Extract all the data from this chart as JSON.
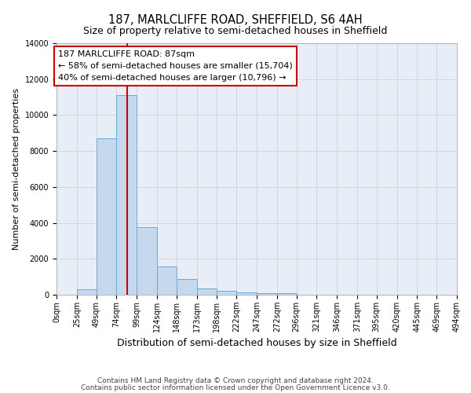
{
  "title": "187, MARLCLIFFE ROAD, SHEFFIELD, S6 4AH",
  "subtitle": "Size of property relative to semi-detached houses in Sheffield",
  "xlabel": "Distribution of semi-detached houses by size in Sheffield",
  "ylabel": "Number of semi-detached properties",
  "property_label": "187 MARLCLIFFE ROAD: 87sqm",
  "pct_smaller": "58% of semi-detached houses are smaller (15,704)",
  "pct_larger": "40% of semi-detached houses are larger (10,796)",
  "footnote1": "Contains HM Land Registry data © Crown copyright and database right 2024.",
  "footnote2": "Contains public sector information licensed under the Open Government Licence v3.0.",
  "bar_edges": [
    0,
    25,
    49,
    74,
    99,
    124,
    148,
    173,
    198,
    222,
    247,
    272,
    296,
    321,
    346,
    371,
    395,
    420,
    445,
    469,
    494
  ],
  "bar_heights": [
    0,
    300,
    8700,
    11100,
    3750,
    1580,
    880,
    340,
    200,
    110,
    70,
    100,
    0,
    0,
    0,
    0,
    0,
    0,
    0,
    0
  ],
  "bar_color": "#c5d8ee",
  "bar_edge_color": "#6aaad4",
  "vline_color": "#cc0000",
  "vline_x": 87,
  "annotation_box_edge": "#cc0000",
  "bg_color": "#e8eef8",
  "ylim": [
    0,
    14000
  ],
  "yticks": [
    0,
    2000,
    4000,
    6000,
    8000,
    10000,
    12000,
    14000
  ],
  "xtick_labels": [
    "0sqm",
    "25sqm",
    "49sqm",
    "74sqm",
    "99sqm",
    "124sqm",
    "148sqm",
    "173sqm",
    "198sqm",
    "222sqm",
    "247sqm",
    "272sqm",
    "296sqm",
    "321sqm",
    "346sqm",
    "371sqm",
    "395sqm",
    "420sqm",
    "445sqm",
    "469sqm",
    "494sqm"
  ],
  "grid_color": "#cccccc",
  "title_fontsize": 10.5,
  "subtitle_fontsize": 9,
  "xlabel_fontsize": 9,
  "ylabel_fontsize": 8,
  "tick_fontsize": 7,
  "annotation_fontsize": 8,
  "footnote_fontsize": 6.5
}
